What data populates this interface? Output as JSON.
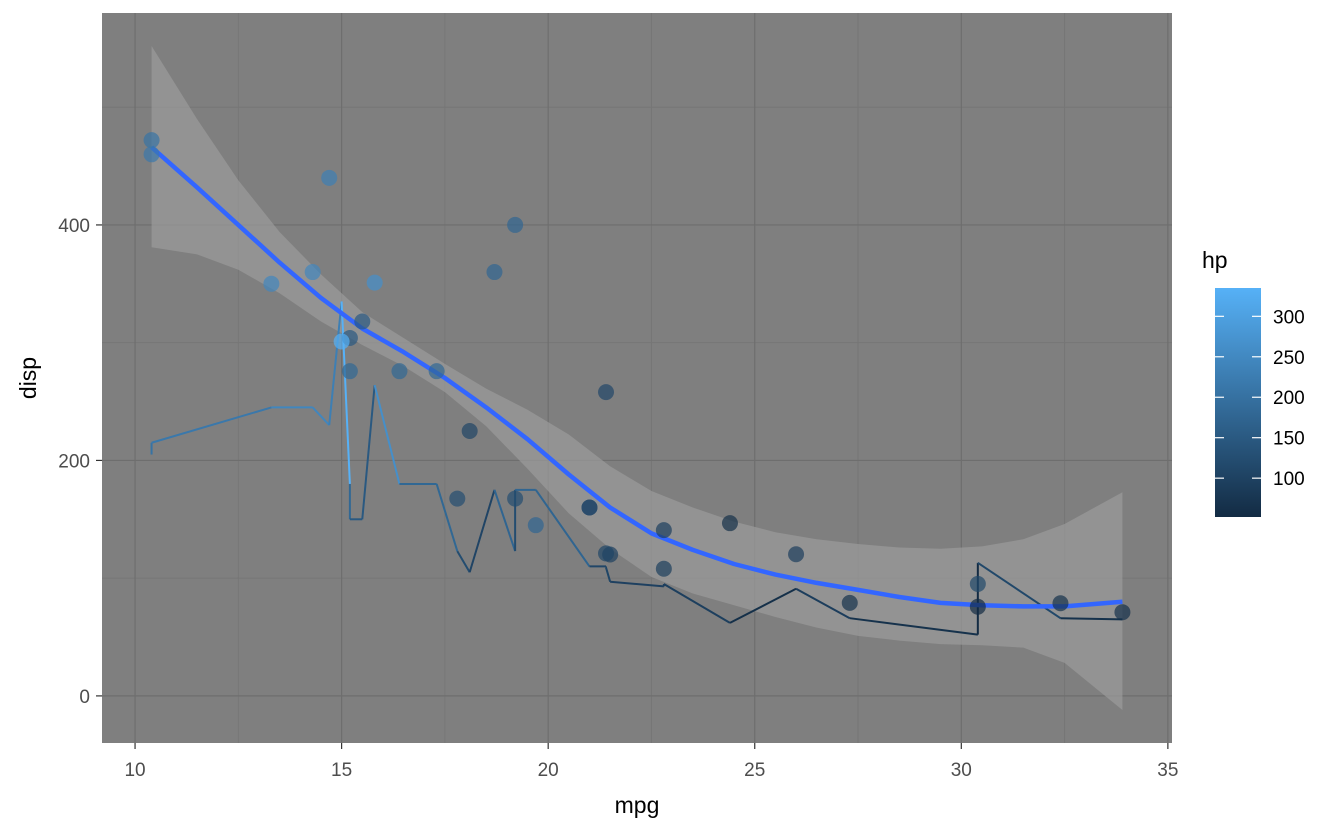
{
  "chart_data": {
    "type": "scatter",
    "xlabel": "mpg",
    "ylabel": "disp",
    "xlim": [
      9.2,
      35.1
    ],
    "ylim": [
      -40,
      580
    ],
    "x_ticks": [
      10,
      15,
      20,
      25,
      30,
      35
    ],
    "y_ticks": [
      0,
      200,
      400
    ],
    "grid": true,
    "colors": {
      "panel": "#7f7f7f",
      "grid_major": "#6e6e6e",
      "grid_minor": "#767676",
      "smooth_line": "#3366ff",
      "ribbon": "#9a9a9a",
      "hp_low": "#132b43",
      "hp_high": "#56b1f7"
    },
    "legend": {
      "title": "hp",
      "position": "right",
      "range": [
        52,
        335
      ],
      "ticks": [
        100,
        150,
        200,
        250,
        300
      ]
    },
    "points": [
      {
        "mpg": 21.0,
        "disp": 160,
        "hp": 110
      },
      {
        "mpg": 21.0,
        "disp": 160,
        "hp": 110
      },
      {
        "mpg": 22.8,
        "disp": 108,
        "hp": 93
      },
      {
        "mpg": 21.4,
        "disp": 258,
        "hp": 110
      },
      {
        "mpg": 18.7,
        "disp": 360,
        "hp": 175
      },
      {
        "mpg": 18.1,
        "disp": 225,
        "hp": 105
      },
      {
        "mpg": 14.3,
        "disp": 360,
        "hp": 245
      },
      {
        "mpg": 24.4,
        "disp": 146.7,
        "hp": 62
      },
      {
        "mpg": 22.8,
        "disp": 140.8,
        "hp": 95
      },
      {
        "mpg": 19.2,
        "disp": 167.6,
        "hp": 123
      },
      {
        "mpg": 17.8,
        "disp": 167.6,
        "hp": 123
      },
      {
        "mpg": 16.4,
        "disp": 275.8,
        "hp": 180
      },
      {
        "mpg": 17.3,
        "disp": 275.8,
        "hp": 180
      },
      {
        "mpg": 15.2,
        "disp": 275.8,
        "hp": 180
      },
      {
        "mpg": 10.4,
        "disp": 472,
        "hp": 205
      },
      {
        "mpg": 10.4,
        "disp": 460,
        "hp": 215
      },
      {
        "mpg": 14.7,
        "disp": 440,
        "hp": 230
      },
      {
        "mpg": 32.4,
        "disp": 78.7,
        "hp": 66
      },
      {
        "mpg": 30.4,
        "disp": 75.7,
        "hp": 52
      },
      {
        "mpg": 33.9,
        "disp": 71.1,
        "hp": 65
      },
      {
        "mpg": 21.5,
        "disp": 120.1,
        "hp": 97
      },
      {
        "mpg": 15.5,
        "disp": 318,
        "hp": 150
      },
      {
        "mpg": 15.2,
        "disp": 304,
        "hp": 150
      },
      {
        "mpg": 13.3,
        "disp": 350,
        "hp": 245
      },
      {
        "mpg": 19.2,
        "disp": 400,
        "hp": 175
      },
      {
        "mpg": 27.3,
        "disp": 79,
        "hp": 66
      },
      {
        "mpg": 26.0,
        "disp": 120.3,
        "hp": 91
      },
      {
        "mpg": 30.4,
        "disp": 95.1,
        "hp": 113
      },
      {
        "mpg": 15.8,
        "disp": 351,
        "hp": 264
      },
      {
        "mpg": 19.7,
        "disp": 145,
        "hp": 175
      },
      {
        "mpg": 15.0,
        "disp": 301,
        "hp": 335
      },
      {
        "mpg": 21.4,
        "disp": 121,
        "hp": 109
      }
    ],
    "path": [
      {
        "mpg": 10.4,
        "disp": 205,
        "hp": 205
      },
      {
        "mpg": 10.4,
        "disp": 215,
        "hp": 215
      },
      {
        "mpg": 13.3,
        "disp": 245,
        "hp": 245
      },
      {
        "mpg": 14.3,
        "disp": 245,
        "hp": 245
      },
      {
        "mpg": 14.7,
        "disp": 230,
        "hp": 230
      },
      {
        "mpg": 15.0,
        "disp": 335,
        "hp": 335
      },
      {
        "mpg": 15.2,
        "disp": 180,
        "hp": 180
      },
      {
        "mpg": 15.2,
        "disp": 150,
        "hp": 150
      },
      {
        "mpg": 15.5,
        "disp": 150,
        "hp": 150
      },
      {
        "mpg": 15.8,
        "disp": 264,
        "hp": 264
      },
      {
        "mpg": 16.4,
        "disp": 180,
        "hp": 180
      },
      {
        "mpg": 17.3,
        "disp": 180,
        "hp": 180
      },
      {
        "mpg": 17.8,
        "disp": 123,
        "hp": 123
      },
      {
        "mpg": 18.1,
        "disp": 105,
        "hp": 105
      },
      {
        "mpg": 18.7,
        "disp": 175,
        "hp": 175
      },
      {
        "mpg": 19.2,
        "disp": 123,
        "hp": 123
      },
      {
        "mpg": 19.2,
        "disp": 175,
        "hp": 175
      },
      {
        "mpg": 19.7,
        "disp": 175,
        "hp": 175
      },
      {
        "mpg": 21.0,
        "disp": 110,
        "hp": 110
      },
      {
        "mpg": 21.0,
        "disp": 110,
        "hp": 110
      },
      {
        "mpg": 21.4,
        "disp": 110,
        "hp": 110
      },
      {
        "mpg": 21.4,
        "disp": 109,
        "hp": 109
      },
      {
        "mpg": 21.5,
        "disp": 97,
        "hp": 97
      },
      {
        "mpg": 22.8,
        "disp": 93,
        "hp": 93
      },
      {
        "mpg": 22.8,
        "disp": 95,
        "hp": 95
      },
      {
        "mpg": 24.4,
        "disp": 62,
        "hp": 62
      },
      {
        "mpg": 26.0,
        "disp": 91,
        "hp": 91
      },
      {
        "mpg": 27.3,
        "disp": 66,
        "hp": 66
      },
      {
        "mpg": 30.4,
        "disp": 52,
        "hp": 52
      },
      {
        "mpg": 30.4,
        "disp": 113,
        "hp": 113
      },
      {
        "mpg": 32.4,
        "disp": 66,
        "hp": 66
      },
      {
        "mpg": 33.9,
        "disp": 65,
        "hp": 65
      }
    ],
    "smooth": {
      "x": [
        10.4,
        11.5,
        12.5,
        13.5,
        14.5,
        15.5,
        16.5,
        17.5,
        18.5,
        19.5,
        20.5,
        21.5,
        22.5,
        23.5,
        24.5,
        25.5,
        26.5,
        27.5,
        28.5,
        29.5,
        30.5,
        31.5,
        32.5,
        33.9
      ],
      "y": [
        466,
        432,
        400,
        368,
        338,
        312,
        292,
        270,
        245,
        218,
        188,
        160,
        138,
        124,
        112,
        103,
        96,
        90,
        84,
        79,
        77,
        76,
        76,
        80
      ],
      "lower": [
        381,
        375,
        362,
        342,
        318,
        298,
        280,
        258,
        229,
        193,
        155,
        125,
        101,
        87,
        77,
        67,
        58,
        51,
        47,
        44,
        43,
        41,
        28,
        -12
      ],
      "upper": [
        552,
        490,
        438,
        394,
        358,
        326,
        304,
        282,
        261,
        243,
        222,
        195,
        174,
        160,
        148,
        139,
        133,
        129,
        126,
        125,
        127,
        133,
        146,
        173
      ]
    }
  }
}
